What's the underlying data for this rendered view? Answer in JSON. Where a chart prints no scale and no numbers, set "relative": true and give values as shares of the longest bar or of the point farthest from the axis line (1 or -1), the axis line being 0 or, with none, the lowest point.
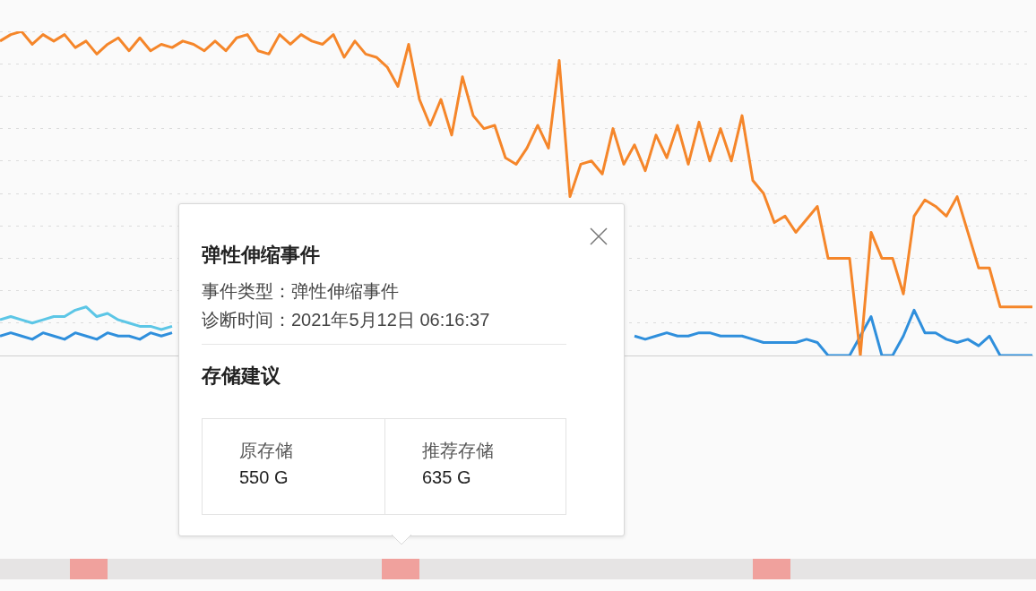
{
  "chart_data": {
    "type": "line",
    "relative": true,
    "grid": "y",
    "legend": false,
    "marker": "none",
    "line_style": "solid",
    "categories": [
      null,
      null,
      null,
      null,
      null,
      null,
      null,
      null,
      null,
      null,
      null,
      null,
      null,
      null,
      null,
      null,
      null,
      null,
      null,
      null,
      null,
      null,
      null,
      null,
      null,
      null,
      null,
      null,
      null,
      null,
      null,
      null,
      null,
      null,
      null,
      null,
      null,
      null,
      null,
      null,
      null,
      null,
      null,
      null,
      null,
      null,
      null,
      null,
      null,
      null,
      null,
      null,
      null,
      null,
      null,
      null,
      null,
      null,
      null,
      null,
      null,
      null,
      null,
      null,
      null,
      null,
      null,
      null,
      null,
      null,
      null,
      null,
      null,
      null,
      null,
      null,
      null,
      null,
      null,
      null,
      null,
      null,
      null,
      null,
      null,
      null,
      null,
      null,
      null,
      null,
      null,
      null,
      null,
      null,
      null,
      null,
      null
    ],
    "series": [
      {
        "color": "#f5862a",
        "values": [
          0.97,
          0.99,
          1,
          0.96,
          0.99,
          0.97,
          0.99,
          0.95,
          0.97,
          0.93,
          0.96,
          0.98,
          0.94,
          0.98,
          0.94,
          0.96,
          0.95,
          0.97,
          0.96,
          0.94,
          0.97,
          0.94,
          0.98,
          0.99,
          0.94,
          0.93,
          0.99,
          0.96,
          0.99,
          0.97,
          0.96,
          0.99,
          0.92,
          0.97,
          0.93,
          0.92,
          0.89,
          0.83,
          0.96,
          0.79,
          0.71,
          0.79,
          0.68,
          0.86,
          0.74,
          0.7,
          0.71,
          0.61,
          0.59,
          0.64,
          0.71,
          0.64,
          0.91,
          0.49,
          0.59,
          0.6,
          0.56,
          0.7,
          0.59,
          0.65,
          0.57,
          0.68,
          0.61,
          0.71,
          0.59,
          0.72,
          0.6,
          0.7,
          0.6,
          0.74,
          0.54,
          0.5,
          0.41,
          0.43,
          0.38,
          0.42,
          0.46,
          0.3,
          0.3,
          0.3,
          0,
          0.38,
          0.3,
          0.3,
          0.19,
          0.43,
          0.48,
          0.46,
          0.43,
          0.49,
          0.38,
          0.27,
          0.27,
          0.15,
          0.15,
          0.15,
          0.15
        ]
      },
      {
        "color": "#5cc6e6",
        "values": [
          0.11,
          0.12,
          0.11,
          0.1,
          0.11,
          0.12,
          0.12,
          0.14,
          0.15,
          0.12,
          0.13,
          0.11,
          0.1,
          0.09,
          0.09,
          0.08,
          0.09,
          null,
          null,
          null,
          null,
          null,
          null,
          null,
          null,
          null,
          null,
          null,
          null,
          null,
          null,
          null,
          null,
          null,
          null,
          null,
          null,
          null,
          null,
          null,
          null,
          null,
          null,
          null,
          null,
          null,
          null,
          null,
          null,
          null,
          null,
          null,
          null,
          null,
          null,
          null,
          null,
          null,
          null,
          null,
          null,
          null,
          null,
          null,
          null,
          null,
          null,
          null,
          null,
          null,
          null,
          null,
          null,
          null,
          null,
          null,
          null,
          null,
          null,
          null,
          null,
          null,
          null,
          null,
          null,
          null,
          null,
          null,
          null,
          null,
          null,
          null,
          null,
          null,
          null,
          null,
          null
        ]
      },
      {
        "color": "#2f8fdc",
        "values": [
          0.06,
          0.07,
          0.06,
          0.05,
          0.07,
          0.06,
          0.05,
          0.07,
          0.06,
          0.05,
          0.07,
          0.06,
          0.06,
          0.05,
          0.07,
          0.06,
          0.07,
          null,
          null,
          null,
          null,
          null,
          null,
          null,
          null,
          null,
          null,
          null,
          null,
          null,
          null,
          null,
          null,
          null,
          null,
          null,
          null,
          null,
          null,
          null,
          null,
          null,
          null,
          null,
          null,
          null,
          null,
          null,
          null,
          null,
          null,
          null,
          null,
          null,
          null,
          null,
          null,
          null,
          null,
          0.06,
          0.05,
          0.06,
          0.07,
          0.06,
          0.06,
          0.07,
          0.07,
          0.06,
          0.06,
          0.06,
          0.05,
          0.04,
          0.04,
          0.04,
          0.04,
          0.05,
          0.04,
          0,
          0,
          0,
          0.06,
          0.12,
          0,
          0,
          0.06,
          0.14,
          0.07,
          0.07,
          0.05,
          0.04,
          0.05,
          0.03,
          0.06,
          0,
          0,
          0,
          0
        ]
      }
    ],
    "annotations": [
      "弹性伸缩事件",
      "事件类型：弹性伸缩事件",
      "诊断时间：2021年5月12日 06:16:37",
      "存储建议",
      "原存储",
      "550 G",
      "推荐存储",
      "635 G"
    ]
  }
}
